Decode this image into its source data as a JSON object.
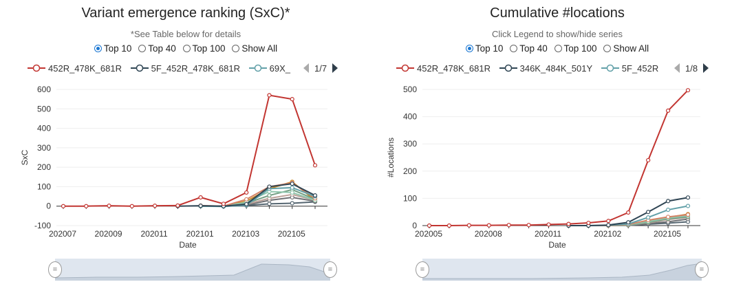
{
  "left": {
    "title": "Variant emergence ranking (SxC)*",
    "subtitle": "*See Table below for details",
    "radios": [
      {
        "label": "Top 10",
        "checked": true
      },
      {
        "label": "Top 40",
        "checked": false
      },
      {
        "label": "Top 100",
        "checked": false
      },
      {
        "label": "Show All",
        "checked": false
      }
    ],
    "legend": [
      {
        "label": "452R_478K_681R",
        "color": "#c23531"
      },
      {
        "label": "5F_452R_478K_681R",
        "color": "#2f4554"
      },
      {
        "label": "69X_",
        "color": "#61a0a8"
      }
    ],
    "page": "1/7"
  },
  "right": {
    "title": "Cumulative #locations",
    "subtitle": "Click Legend to show/hide series",
    "radios": [
      {
        "label": "Top 10",
        "checked": true
      },
      {
        "label": "Top 40",
        "checked": false
      },
      {
        "label": "Top 100",
        "checked": false
      },
      {
        "label": "Show All",
        "checked": false
      }
    ],
    "legend": [
      {
        "label": "452R_478K_681R",
        "color": "#c23531"
      },
      {
        "label": "346K_484K_501Y",
        "color": "#2f4554"
      },
      {
        "label": "5F_452R",
        "color": "#61a0a8"
      }
    ],
    "page": "1/8"
  },
  "chart_data": [
    {
      "type": "line",
      "title": "Variant emergence ranking (SxC)*",
      "xlabel": "Date",
      "ylabel": "SxC",
      "ylim": [
        -100,
        600
      ],
      "yticks": [
        -100,
        0,
        100,
        200,
        300,
        400,
        500,
        600
      ],
      "x": [
        "202007",
        "202008",
        "202009",
        "202010",
        "202011",
        "202012",
        "202101",
        "202102",
        "202103",
        "202104",
        "202105",
        "202106"
      ],
      "xtick_labels": [
        "202007",
        "202009",
        "202011",
        "202101",
        "202103",
        "202105"
      ],
      "xtick_index": [
        0,
        2,
        4,
        6,
        8,
        10
      ],
      "series": [
        {
          "name": "452R_478K_681R",
          "color": "#c23531",
          "values": [
            0,
            0,
            2,
            0,
            2,
            3,
            45,
            12,
            70,
            570,
            550,
            210
          ]
        },
        {
          "name": "5F_452R_478K_681R",
          "color": "#2f4554",
          "values": [
            null,
            null,
            null,
            null,
            null,
            0,
            2,
            0,
            10,
            100,
            115,
            55
          ]
        },
        {
          "name": "69X_",
          "color": "#61a0a8",
          "values": [
            null,
            null,
            null,
            null,
            null,
            null,
            0,
            -2,
            5,
            90,
            95,
            50
          ]
        },
        {
          "color": "#d48265",
          "values": [
            null,
            null,
            null,
            null,
            null,
            null,
            3,
            0,
            35,
            100,
            120,
            40
          ]
        },
        {
          "color": "#91c7ae",
          "values": [
            null,
            null,
            null,
            null,
            null,
            null,
            0,
            0,
            20,
            75,
            70,
            30
          ]
        },
        {
          "color": "#749f83",
          "values": [
            null,
            null,
            null,
            null,
            null,
            null,
            0,
            0,
            15,
            55,
            85,
            35
          ]
        },
        {
          "color": "#ca8622",
          "values": [
            null,
            null,
            null,
            null,
            null,
            null,
            0,
            0,
            25,
            90,
            125,
            30
          ]
        },
        {
          "color": "#bda29a",
          "values": [
            null,
            null,
            null,
            null,
            null,
            null,
            0,
            0,
            10,
            40,
            60,
            30
          ]
        },
        {
          "color": "#6e7074",
          "values": [
            null,
            null,
            null,
            null,
            null,
            null,
            0,
            0,
            5,
            30,
            45,
            25
          ]
        },
        {
          "color": "#546570",
          "values": [
            null,
            null,
            null,
            null,
            null,
            null,
            0,
            0,
            3,
            12,
            15,
            22
          ]
        }
      ]
    },
    {
      "type": "line",
      "title": "Cumulative #locations",
      "xlabel": "Date",
      "ylabel": "#Locations",
      "ylim": [
        0,
        500
      ],
      "yticks": [
        0,
        100,
        200,
        300,
        400,
        500
      ],
      "x": [
        "202005",
        "202006",
        "202007",
        "202008",
        "202009",
        "202010",
        "202011",
        "202012",
        "202101",
        "202102",
        "202103",
        "202104",
        "202105",
        "202106"
      ],
      "xtick_labels": [
        "202005",
        "202008",
        "202011",
        "202102",
        "202105"
      ],
      "xtick_index": [
        0,
        3,
        6,
        9,
        12
      ],
      "series": [
        {
          "name": "452R_478K_681R",
          "color": "#c23531",
          "values": [
            0,
            0,
            1,
            1,
            2,
            2,
            4,
            6,
            10,
            17,
            48,
            240,
            422,
            497
          ]
        },
        {
          "name": "346K_484K_501Y",
          "color": "#2f4554",
          "values": [
            null,
            null,
            null,
            null,
            null,
            null,
            null,
            0,
            0,
            2,
            12,
            50,
            90,
            103
          ]
        },
        {
          "name": "5F_452R",
          "color": "#61a0a8",
          "values": [
            null,
            null,
            null,
            null,
            null,
            null,
            null,
            0,
            0,
            1,
            6,
            30,
            58,
            72
          ]
        },
        {
          "color": "#d48265",
          "values": [
            null,
            null,
            null,
            null,
            null,
            null,
            null,
            0,
            0,
            0,
            4,
            20,
            32,
            40
          ]
        },
        {
          "color": "#91c7ae",
          "values": [
            null,
            null,
            null,
            null,
            null,
            null,
            null,
            0,
            0,
            0,
            3,
            15,
            28,
            36
          ]
        },
        {
          "color": "#749f83",
          "values": [
            null,
            null,
            null,
            null,
            null,
            null,
            null,
            0,
            0,
            0,
            2,
            12,
            25,
            32
          ]
        },
        {
          "color": "#ca8622",
          "values": [
            null,
            null,
            null,
            null,
            null,
            null,
            null,
            0,
            0,
            0,
            3,
            18,
            30,
            42
          ]
        },
        {
          "color": "#bda29a",
          "values": [
            null,
            null,
            null,
            null,
            null,
            null,
            null,
            0,
            0,
            0,
            2,
            10,
            22,
            30
          ]
        },
        {
          "color": "#6e7074",
          "values": [
            null,
            null,
            null,
            null,
            null,
            null,
            null,
            0,
            0,
            0,
            1,
            8,
            14,
            24
          ]
        },
        {
          "color": "#546570",
          "values": [
            null,
            null,
            null,
            null,
            null,
            null,
            null,
            0,
            0,
            0,
            1,
            5,
            9,
            14
          ]
        }
      ]
    }
  ]
}
